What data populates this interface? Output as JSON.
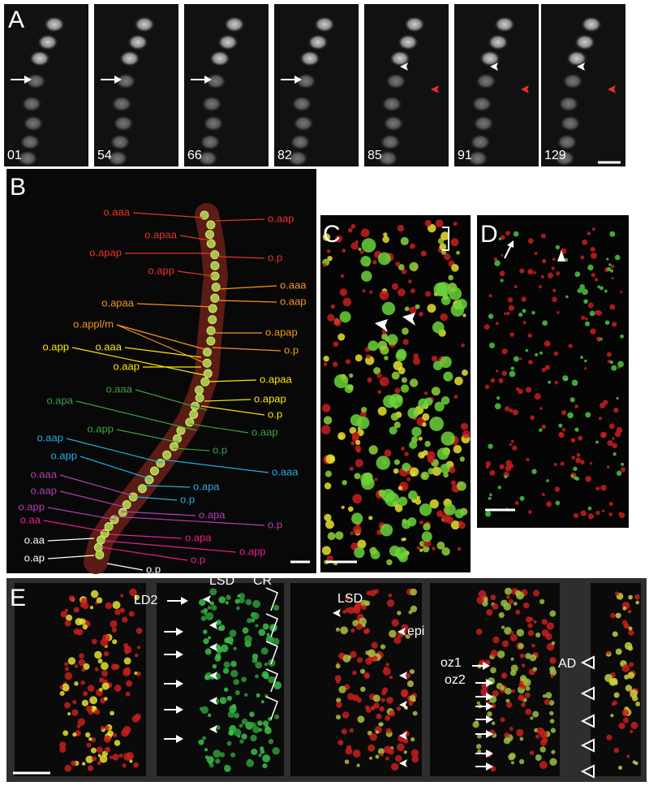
{
  "panel_a": {
    "label": "A",
    "frames": [
      "01",
      "54",
      "66",
      "82",
      "85",
      "91",
      "129"
    ]
  },
  "panel_b": {
    "label": "B",
    "labels": [
      {
        "text": "o.aaa",
        "color": "#e8332a"
      },
      {
        "text": "o.apaa",
        "color": "#e8332a"
      },
      {
        "text": "o.apap",
        "color": "#e8332a"
      },
      {
        "text": "o.app",
        "color": "#e8332a"
      },
      {
        "text": "o.apaa",
        "color": "#f7941d"
      },
      {
        "text": "o.appl/m",
        "color": "#f7941d"
      },
      {
        "text": "o.app",
        "color": "#ffe600"
      },
      {
        "text": "o.aaa",
        "color": "#ffe600"
      },
      {
        "text": "o.aap",
        "color": "#ffe600"
      },
      {
        "text": "o.apa",
        "color": "#3aa142"
      },
      {
        "text": "o.aaa",
        "color": "#3aa142"
      },
      {
        "text": "o.app",
        "color": "#3aa142"
      },
      {
        "text": "o.aap",
        "color": "#29abe2"
      },
      {
        "text": "o.app",
        "color": "#29abe2"
      },
      {
        "text": "o.aaa",
        "color": "#b43eb3"
      },
      {
        "text": "o.aap",
        "color": "#b43eb3"
      },
      {
        "text": "o.app",
        "color": "#b43eb3"
      },
      {
        "text": "o.aa",
        "color": "#ec1c8c"
      },
      {
        "text": "o.aa",
        "color": "#ffffff"
      },
      {
        "text": "o.ap",
        "color": "#ffffff"
      },
      {
        "text": "o.aap",
        "color": "#e8332a"
      },
      {
        "text": "o.p",
        "color": "#e8332a"
      },
      {
        "text": "o.aaa",
        "color": "#f7941d"
      },
      {
        "text": "o.aap",
        "color": "#f7941d"
      },
      {
        "text": "o.apap",
        "color": "#f7941d"
      },
      {
        "text": "o.p",
        "color": "#f7941d"
      },
      {
        "text": "o.apaa",
        "color": "#ffe600"
      },
      {
        "text": "o.apap",
        "color": "#ffe600"
      },
      {
        "text": "o.p",
        "color": "#ffe600"
      },
      {
        "text": "o.aap",
        "color": "#3aa142"
      },
      {
        "text": "o.p",
        "color": "#3aa142"
      },
      {
        "text": "o.aaa",
        "color": "#29abe2"
      },
      {
        "text": "o.apa",
        "color": "#29abe2"
      },
      {
        "text": "o.p",
        "color": "#29abe2"
      },
      {
        "text": "o.apa",
        "color": "#b43eb3"
      },
      {
        "text": "o.p",
        "color": "#b43eb3"
      },
      {
        "text": "o.apa",
        "color": "#ec1c8c"
      },
      {
        "text": "o.app",
        "color": "#ec1c8c"
      },
      {
        "text": "o.p",
        "color": "#ec1c8c"
      },
      {
        "text": "o.p",
        "color": "#ffffff"
      }
    ]
  },
  "panel_c": {
    "label": "C"
  },
  "panel_d": {
    "label": "D"
  },
  "panel_e": {
    "label": "E",
    "annotations": [
      "LD2",
      "LSD",
      "CR",
      "LSD",
      "epi",
      "oz1",
      "oz2",
      "AD"
    ]
  }
}
